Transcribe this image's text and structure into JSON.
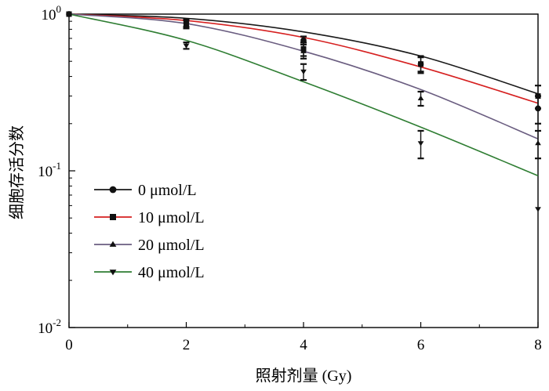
{
  "chart_data": {
    "type": "line",
    "xlabel": "照射剂量 (Gy)",
    "ylabel": "细胞存活分数",
    "xlim": [
      0,
      8
    ],
    "ylim": [
      0.01,
      1
    ],
    "yscale": "log",
    "x_ticks": [
      {
        "value": 0,
        "label": "0"
      },
      {
        "value": 2,
        "label": "2"
      },
      {
        "value": 4,
        "label": "4"
      },
      {
        "value": 6,
        "label": "6"
      },
      {
        "value": 8,
        "label": "8"
      }
    ],
    "y_ticks": [
      {
        "value": 1,
        "base": "10",
        "exp": "0"
      },
      {
        "value": 0.1,
        "base": "10",
        "exp": "-1"
      },
      {
        "value": 0.01,
        "base": "10",
        "exp": "-2"
      }
    ],
    "grid": false,
    "legend_position": "bottom-left",
    "series": [
      {
        "name": "0 μmol/L",
        "color": "#1a1a1a",
        "marker": "circle",
        "x": [
          0,
          2,
          4,
          6,
          8
        ],
        "y": [
          1.0,
          0.88,
          0.68,
          0.48,
          0.25
        ],
        "err": [
          0.01,
          0.05,
          0.04,
          0.06,
          0.05
        ],
        "fit": [
          1.0,
          0.94,
          0.77,
          0.54,
          0.31
        ]
      },
      {
        "name": "10 μmol/L",
        "color": "#d62020",
        "marker": "square",
        "x": [
          0,
          2,
          4,
          6,
          8
        ],
        "y": [
          1.0,
          0.86,
          0.6,
          0.48,
          0.3
        ],
        "err": [
          0.01,
          0.05,
          0.06,
          0.05,
          0.05
        ],
        "fit": [
          1.0,
          0.91,
          0.71,
          0.46,
          0.27
        ]
      },
      {
        "name": "20 μmol/L",
        "color": "#6a5d80",
        "marker": "triangle-up",
        "x": [
          0,
          2,
          4,
          6,
          8
        ],
        "y": [
          1.0,
          0.87,
          0.58,
          0.29,
          0.15
        ],
        "err": [
          0.01,
          0.05,
          0.06,
          0.03,
          0.03
        ],
        "fit": [
          1.0,
          0.87,
          0.58,
          0.33,
          0.16
        ]
      },
      {
        "name": "40 μmol/L",
        "color": "#2e7d32",
        "marker": "triangle-down",
        "x": [
          0,
          2,
          4,
          6,
          8
        ],
        "y": [
          1.0,
          0.63,
          0.43,
          0.15,
          0.057
        ],
        "err": [
          0.01,
          0.03,
          0.05,
          0.03,
          0.01
        ],
        "fit": [
          1.0,
          0.68,
          0.37,
          0.19,
          0.093
        ]
      }
    ]
  }
}
